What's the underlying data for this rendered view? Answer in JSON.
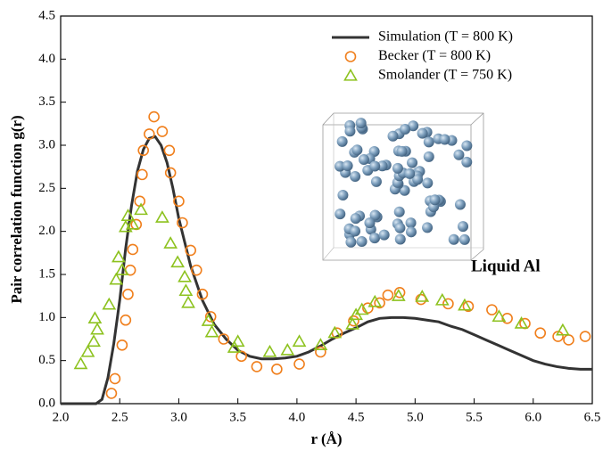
{
  "chart_data": {
    "type": "line",
    "x_label": "r (Å)",
    "y_label": "Pair correlation function g(r)",
    "annotation": "Liquid Al",
    "xlim": [
      2.0,
      6.5
    ],
    "ylim": [
      0.0,
      4.5
    ],
    "xticks": [
      {
        "value": 2,
        "label": "2.0"
      },
      {
        "value": 2.5,
        "label": "2.5"
      },
      {
        "value": 3,
        "label": "3.0"
      },
      {
        "value": 3.5,
        "label": "3.5"
      },
      {
        "value": 4,
        "label": "4.0"
      },
      {
        "value": 4.5,
        "label": "4.5"
      },
      {
        "value": 5,
        "label": "5.0"
      },
      {
        "value": 5.5,
        "label": "5.5"
      },
      {
        "value": 6,
        "label": "6.0"
      },
      {
        "value": 6.5,
        "label": "6.5"
      }
    ],
    "yticks": [
      {
        "value": 0,
        "label": "0.0"
      },
      {
        "value": 0.5,
        "label": "0.5"
      },
      {
        "value": 1,
        "label": "1.0"
      },
      {
        "value": 1.5,
        "label": "1.5"
      },
      {
        "value": 2,
        "label": "2.0"
      },
      {
        "value": 2.5,
        "label": "2.5"
      },
      {
        "value": 3,
        "label": "3.0"
      },
      {
        "value": 3.5,
        "label": "3.5"
      },
      {
        "value": 4,
        "label": "4.0"
      },
      {
        "value": 4.5,
        "label": "4.5"
      }
    ],
    "legend": "top-right",
    "series": [
      {
        "name": "Simulation (T = 800 K)",
        "color": "#333333",
        "marker": "line",
        "x": [
          2.0,
          2.3,
          2.35,
          2.4,
          2.45,
          2.5,
          2.55,
          2.6,
          2.65,
          2.7,
          2.75,
          2.8,
          2.85,
          2.9,
          2.95,
          3.0,
          3.1,
          3.2,
          3.3,
          3.4,
          3.5,
          3.6,
          3.7,
          3.8,
          3.9,
          4.0,
          4.1,
          4.2,
          4.3,
          4.4,
          4.5,
          4.6,
          4.7,
          4.8,
          4.9,
          5.0,
          5.1,
          5.2,
          5.3,
          5.4,
          5.5,
          5.6,
          5.7,
          5.8,
          5.9,
          6.0,
          6.1,
          6.2,
          6.3,
          6.4,
          6.5
        ],
        "values": [
          0,
          0,
          0.05,
          0.3,
          0.7,
          1.2,
          1.8,
          2.3,
          2.7,
          2.95,
          3.08,
          3.1,
          3.0,
          2.8,
          2.5,
          2.15,
          1.6,
          1.2,
          0.92,
          0.75,
          0.62,
          0.55,
          0.52,
          0.52,
          0.53,
          0.55,
          0.6,
          0.67,
          0.75,
          0.82,
          0.88,
          0.95,
          0.99,
          1.0,
          1.0,
          0.99,
          0.97,
          0.95,
          0.9,
          0.86,
          0.8,
          0.74,
          0.68,
          0.62,
          0.56,
          0.5,
          0.46,
          0.43,
          0.41,
          0.4,
          0.4
        ]
      },
      {
        "name": "Becker (T = 800 K)",
        "color": "#f07f1c",
        "marker": "circle",
        "x": [
          2.43,
          2.46,
          2.52,
          2.55,
          2.57,
          2.59,
          2.61,
          2.64,
          2.67,
          2.69,
          2.7,
          2.75,
          2.79,
          2.86,
          2.92,
          2.93,
          3.0,
          3.03,
          3.1,
          3.15,
          3.2,
          3.27,
          3.38,
          3.53,
          3.66,
          3.83,
          4.02,
          4.2,
          4.34,
          4.48,
          4.6,
          4.7,
          4.77,
          4.87,
          5.05,
          5.28,
          5.45,
          5.65,
          5.78,
          5.93,
          6.06,
          6.21,
          6.3,
          6.44
        ],
        "values": [
          0.12,
          0.29,
          0.68,
          0.97,
          1.27,
          1.55,
          1.79,
          2.08,
          2.35,
          2.66,
          2.94,
          3.13,
          3.33,
          3.16,
          2.94,
          2.68,
          2.35,
          2.1,
          1.78,
          1.55,
          1.27,
          1.01,
          0.75,
          0.55,
          0.43,
          0.4,
          0.46,
          0.6,
          0.82,
          0.96,
          1.11,
          1.17,
          1.26,
          1.29,
          1.21,
          1.16,
          1.13,
          1.09,
          0.99,
          0.93,
          0.82,
          0.78,
          0.74,
          0.78
        ]
      },
      {
        "name": "Smolander (T = 750 K)",
        "color": "#8dc21f",
        "marker": "triangle",
        "x": [
          2.17,
          2.23,
          2.28,
          2.31,
          2.29,
          2.41,
          2.47,
          2.49,
          2.52,
          2.55,
          2.57,
          2.61,
          2.68,
          2.86,
          2.93,
          2.99,
          3.05,
          3.06,
          3.08,
          3.25,
          3.28,
          3.47,
          3.5,
          3.77,
          3.92,
          4.02,
          4.2,
          4.32,
          4.47,
          4.5,
          4.55,
          4.66,
          4.86,
          5.06,
          5.23,
          5.42,
          5.71,
          5.9,
          6.25
        ],
        "values": [
          0.46,
          0.6,
          0.72,
          0.86,
          0.99,
          1.15,
          1.44,
          1.7,
          1.55,
          2.05,
          2.18,
          2.08,
          2.25,
          2.16,
          1.86,
          1.64,
          1.47,
          1.31,
          1.17,
          0.96,
          0.83,
          0.65,
          0.72,
          0.6,
          0.62,
          0.72,
          0.68,
          0.82,
          0.92,
          1.03,
          1.09,
          1.18,
          1.25,
          1.24,
          1.2,
          1.14,
          1.01,
          0.93,
          0.85
        ]
      }
    ]
  }
}
